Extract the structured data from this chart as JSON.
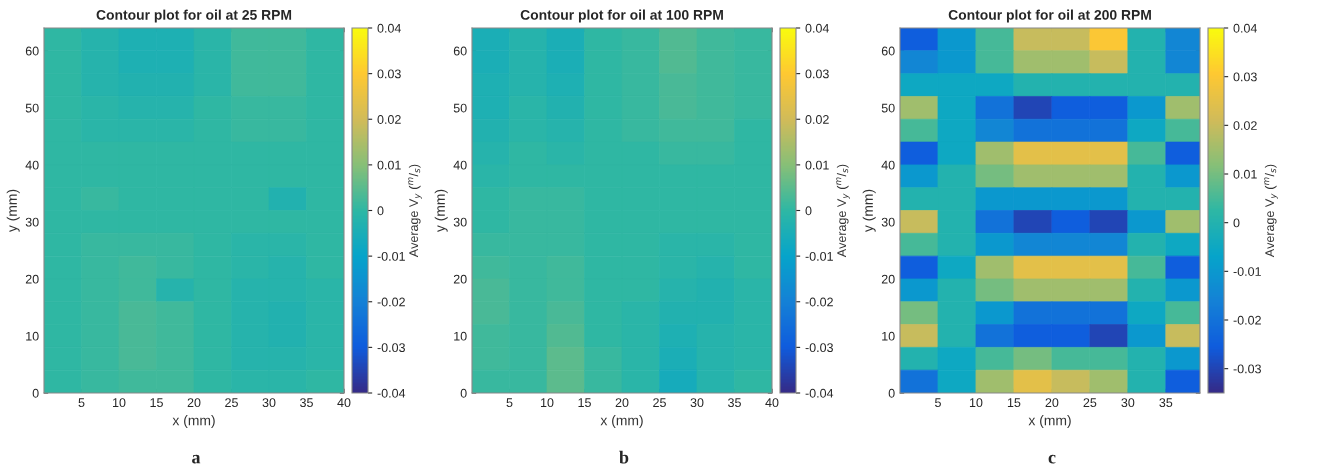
{
  "chart_data": [
    {
      "type": "heatmap",
      "title": "Contour plot for oil at 25 RPM",
      "xlabel": "x (mm)",
      "ylabel": "y (mm)",
      "clabel": "Average V$_{y}$ ($^{m}$/$_{s}$)",
      "annotations": [
        "a"
      ],
      "x": [
        2.5,
        7.5,
        12.5,
        17.5,
        22.5,
        27.5,
        32.5,
        37.5
      ],
      "y": [
        62,
        58,
        54,
        50,
        46,
        42,
        38,
        34,
        30,
        26,
        22,
        18,
        14,
        10,
        6,
        2
      ],
      "xlim": [
        0,
        40
      ],
      "ylim": [
        0,
        64
      ],
      "xticks": [
        5,
        10,
        15,
        20,
        25,
        30,
        35,
        40
      ],
      "yticks": [
        0,
        10,
        20,
        30,
        40,
        50,
        60
      ],
      "clim": [
        -0.04,
        0.04
      ],
      "cticks": [
        -0.04,
        -0.03,
        -0.02,
        -0.01,
        0,
        0.01,
        0.02,
        0.03,
        0.04
      ],
      "cells": [
        [
          0.0,
          -0.002,
          -0.004,
          -0.004,
          -0.001,
          0.002,
          0.002,
          0.0
        ],
        [
          0.0,
          -0.002,
          -0.004,
          -0.004,
          -0.001,
          0.002,
          0.002,
          0.0
        ],
        [
          0.0,
          -0.002,
          -0.003,
          -0.003,
          -0.001,
          0.002,
          0.002,
          0.0
        ],
        [
          0.0,
          -0.001,
          -0.002,
          -0.002,
          0.0,
          0.001,
          0.001,
          0.0
        ],
        [
          0.0,
          -0.001,
          -0.001,
          -0.001,
          0.0,
          0.001,
          0.001,
          0.0
        ],
        [
          0.0,
          0.0,
          0.0,
          0.0,
          0.0,
          0.0,
          0.0,
          0.0
        ],
        [
          0.0,
          0.0,
          0.0,
          0.0,
          0.0,
          0.0,
          0.0,
          0.0
        ],
        [
          0.0,
          0.001,
          0.0,
          0.0,
          0.0,
          0.0,
          -0.003,
          0.0
        ],
        [
          0.0,
          0.0,
          0.0,
          0.0,
          0.0,
          0.0,
          0.0,
          0.0
        ],
        [
          0.0,
          0.001,
          0.001,
          0.001,
          0.0,
          -0.001,
          -0.001,
          0.0
        ],
        [
          0.0,
          0.001,
          0.002,
          0.001,
          0.0,
          -0.001,
          -0.002,
          0.0
        ],
        [
          0.0,
          0.001,
          0.002,
          -0.002,
          0.0,
          -0.002,
          -0.002,
          -0.001
        ],
        [
          0.0,
          0.001,
          0.003,
          0.002,
          0.0,
          -0.002,
          -0.003,
          -0.001
        ],
        [
          0.0,
          0.001,
          0.003,
          0.002,
          0.0,
          -0.002,
          -0.003,
          -0.001
        ],
        [
          0.0,
          0.001,
          0.003,
          0.002,
          0.0,
          -0.002,
          -0.002,
          -0.001
        ],
        [
          0.0,
          0.001,
          0.002,
          0.002,
          0.0,
          -0.001,
          -0.001,
          0.0
        ]
      ]
    },
    {
      "type": "heatmap",
      "title": "Contour plot for oil at 100 RPM",
      "xlabel": "x (mm)",
      "ylabel": "y (mm)",
      "clabel": "Average V$_{y}$ ($^{m}$/$_{s}$)",
      "annotations": [
        "b"
      ],
      "x": [
        2.5,
        7.5,
        12.5,
        17.5,
        22.5,
        27.5,
        32.5,
        37.5
      ],
      "y": [
        62,
        58,
        54,
        50,
        46,
        42,
        38,
        34,
        30,
        26,
        22,
        18,
        14,
        10,
        6,
        2
      ],
      "xlim": [
        0,
        40
      ],
      "ylim": [
        0,
        64
      ],
      "xticks": [
        5,
        10,
        15,
        20,
        25,
        30,
        35,
        40
      ],
      "yticks": [
        0,
        10,
        20,
        30,
        40,
        50,
        60
      ],
      "clim": [
        -0.04,
        0.04
      ],
      "cticks": [
        -0.04,
        -0.03,
        -0.02,
        -0.01,
        0,
        0.01,
        0.02,
        0.03,
        0.04
      ],
      "cells": [
        [
          -0.005,
          -0.002,
          -0.005,
          0.0,
          0.001,
          0.004,
          0.002,
          0.001
        ],
        [
          -0.005,
          -0.002,
          -0.005,
          0.0,
          0.001,
          0.004,
          0.002,
          0.001
        ],
        [
          -0.004,
          -0.002,
          -0.004,
          0.0,
          0.001,
          0.003,
          0.002,
          0.001
        ],
        [
          -0.004,
          -0.001,
          -0.003,
          0.0,
          0.001,
          0.003,
          0.002,
          0.001
        ],
        [
          -0.003,
          -0.001,
          -0.002,
          0.0,
          0.001,
          0.002,
          0.002,
          0.0
        ],
        [
          -0.002,
          0.0,
          -0.001,
          0.0,
          0.0,
          0.001,
          0.001,
          0.0
        ],
        [
          -0.001,
          0.0,
          0.0,
          0.0,
          0.0,
          0.0,
          0.0,
          0.0
        ],
        [
          0.0,
          0.001,
          0.001,
          0.0,
          0.0,
          0.0,
          0.0,
          0.0
        ],
        [
          0.0,
          0.001,
          0.001,
          0.0,
          0.0,
          0.0,
          0.0,
          0.0
        ],
        [
          0.001,
          0.001,
          0.001,
          0.0,
          0.0,
          -0.001,
          -0.001,
          0.0
        ],
        [
          0.002,
          0.001,
          0.002,
          0.0,
          0.0,
          -0.001,
          -0.002,
          0.0
        ],
        [
          0.003,
          0.001,
          0.002,
          0.0,
          0.0,
          -0.002,
          -0.003,
          -0.001
        ],
        [
          0.003,
          0.001,
          0.003,
          0.0,
          -0.001,
          -0.003,
          -0.003,
          -0.001
        ],
        [
          0.002,
          0.001,
          0.004,
          0.0,
          -0.001,
          -0.004,
          -0.002,
          -0.001
        ],
        [
          0.002,
          0.001,
          0.005,
          0.001,
          -0.001,
          -0.005,
          -0.002,
          -0.001
        ],
        [
          0.001,
          0.001,
          0.005,
          0.001,
          -0.001,
          -0.006,
          -0.002,
          0.0
        ]
      ]
    },
    {
      "type": "heatmap",
      "title": "Contour plot for oil at 200 RPM",
      "xlabel": "x (mm)",
      "ylabel": "y (mm)",
      "clabel": "Average V$_{y}$ ($^{m}$/$_{s}$)",
      "annotations": [
        "c"
      ],
      "x": [
        2.5,
        7.5,
        12.5,
        17.5,
        22.5,
        27.5,
        32.5,
        37.5
      ],
      "y": [
        62,
        58,
        54,
        50,
        46,
        42,
        38,
        34,
        30,
        26,
        22,
        18,
        14,
        10,
        6,
        2
      ],
      "xlim": [
        0,
        39.5
      ],
      "ylim": [
        0,
        64
      ],
      "xticks": [
        5,
        10,
        15,
        20,
        25,
        30,
        35
      ],
      "yticks": [
        0,
        10,
        20,
        30,
        40,
        50,
        60
      ],
      "clim": [
        -0.035,
        0.04
      ],
      "cticks": [
        -0.03,
        -0.02,
        -0.01,
        0,
        0.01,
        0.02,
        0.03,
        0.04
      ],
      "cells": [
        [
          -0.025,
          -0.01,
          0.005,
          0.02,
          0.02,
          0.03,
          0.0,
          -0.015
        ],
        [
          -0.015,
          -0.01,
          0.005,
          0.015,
          0.015,
          0.02,
          0.0,
          -0.015
        ],
        [
          -0.005,
          -0.005,
          -0.005,
          0.0,
          0.0,
          0.0,
          0.0,
          0.0
        ],
        [
          0.015,
          -0.005,
          -0.02,
          -0.03,
          -0.025,
          -0.025,
          -0.01,
          0.015
        ],
        [
          0.005,
          -0.005,
          -0.015,
          -0.02,
          -0.02,
          -0.02,
          -0.005,
          0.005
        ],
        [
          -0.025,
          -0.005,
          0.015,
          0.025,
          0.025,
          0.025,
          0.005,
          -0.025
        ],
        [
          -0.01,
          0.0,
          0.01,
          0.015,
          0.015,
          0.015,
          0.0,
          -0.01
        ],
        [
          0.0,
          0.0,
          -0.01,
          -0.01,
          -0.01,
          -0.01,
          0.0,
          0.0
        ],
        [
          0.02,
          0.0,
          -0.02,
          -0.03,
          -0.025,
          -0.03,
          -0.01,
          0.015
        ],
        [
          0.005,
          0.0,
          -0.01,
          -0.015,
          -0.015,
          -0.015,
          0.0,
          -0.005
        ],
        [
          -0.025,
          -0.005,
          0.015,
          0.025,
          0.025,
          0.025,
          0.005,
          -0.025
        ],
        [
          -0.01,
          0.0,
          0.01,
          0.015,
          0.015,
          0.015,
          0.0,
          -0.01
        ],
        [
          0.01,
          0.0,
          -0.01,
          -0.02,
          -0.02,
          -0.02,
          -0.005,
          0.005
        ],
        [
          0.02,
          0.0,
          -0.02,
          -0.025,
          -0.025,
          -0.03,
          -0.01,
          0.02
        ],
        [
          0.0,
          -0.005,
          0.005,
          0.01,
          0.005,
          0.005,
          0.0,
          -0.01
        ],
        [
          -0.02,
          -0.005,
          0.015,
          0.025,
          0.02,
          0.015,
          0.0,
          -0.025
        ]
      ]
    }
  ]
}
